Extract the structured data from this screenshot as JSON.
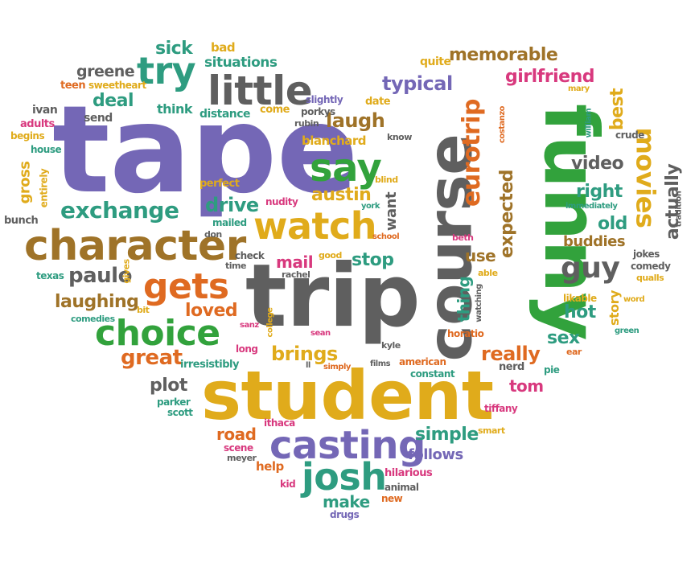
{
  "colors": {
    "purple": "#7467b6",
    "gray": "#5f5f5f",
    "gold": "#e0ab1b",
    "orange": "#df6a21",
    "green": "#32a23c",
    "teal": "#2e9c80",
    "pink": "#d8397e",
    "brown": "#9f7328"
  },
  "words": [
    {
      "text": "tape",
      "color": "purple"
    },
    {
      "text": "trip",
      "color": "gray"
    },
    {
      "text": "student",
      "color": "gold"
    },
    {
      "text": "course",
      "color": "gray"
    },
    {
      "text": "funny",
      "color": "green"
    },
    {
      "text": "character",
      "color": "brown"
    },
    {
      "text": "casting",
      "color": "purple"
    },
    {
      "text": "watch",
      "color": "gold"
    },
    {
      "text": "little",
      "color": "gray"
    },
    {
      "text": "choice",
      "color": "green"
    },
    {
      "text": "gets",
      "color": "orange"
    },
    {
      "text": "say",
      "color": "green"
    },
    {
      "text": "josh",
      "color": "teal"
    },
    {
      "text": "try",
      "color": "teal"
    },
    {
      "text": "exchange",
      "color": "teal"
    },
    {
      "text": "eurotrip",
      "color": "orange"
    },
    {
      "text": "movies",
      "color": "gold"
    },
    {
      "text": "memorable",
      "color": "brown"
    },
    {
      "text": "typical",
      "color": "purple"
    },
    {
      "text": "girlfriend",
      "color": "pink"
    },
    {
      "text": "laugh",
      "color": "brown"
    },
    {
      "text": "guy",
      "color": "gray"
    },
    {
      "text": "paulo",
      "color": "gray"
    },
    {
      "text": "great",
      "color": "orange"
    },
    {
      "text": "brings",
      "color": "gold"
    },
    {
      "text": "really",
      "color": "orange"
    },
    {
      "text": "drive",
      "color": "teal"
    },
    {
      "text": "austin",
      "color": "gold"
    },
    {
      "text": "deal",
      "color": "teal"
    },
    {
      "text": "laughing",
      "color": "brown"
    },
    {
      "text": "loved",
      "color": "orange"
    },
    {
      "text": "stop",
      "color": "teal"
    },
    {
      "text": "mail",
      "color": "pink"
    },
    {
      "text": "video",
      "color": "gray"
    },
    {
      "text": "right",
      "color": "teal"
    },
    {
      "text": "best",
      "color": "gold"
    },
    {
      "text": "actually",
      "color": "gray"
    },
    {
      "text": "expected",
      "color": "brown"
    },
    {
      "text": "old",
      "color": "teal"
    },
    {
      "text": "buddies",
      "color": "brown"
    },
    {
      "text": "sick",
      "color": "teal"
    },
    {
      "text": "situations",
      "color": "teal"
    },
    {
      "text": "greene",
      "color": "gray"
    },
    {
      "text": "bad",
      "color": "gold"
    },
    {
      "text": "quite",
      "color": "gold"
    },
    {
      "text": "plot",
      "color": "gray"
    },
    {
      "text": "road",
      "color": "orange"
    },
    {
      "text": "simple",
      "color": "teal"
    },
    {
      "text": "follows",
      "color": "purple"
    },
    {
      "text": "make",
      "color": "teal"
    },
    {
      "text": "tom",
      "color": "pink"
    },
    {
      "text": "sex",
      "color": "teal"
    },
    {
      "text": "hot",
      "color": "teal"
    },
    {
      "text": "thing",
      "color": "teal"
    },
    {
      "text": "use",
      "color": "brown"
    },
    {
      "text": "blanchard",
      "color": "gold"
    },
    {
      "text": "gross",
      "color": "gold"
    },
    {
      "text": "want",
      "color": "gray"
    },
    {
      "text": "story",
      "color": "gold"
    },
    {
      "text": "think",
      "color": "teal"
    },
    {
      "text": "distance",
      "color": "teal"
    },
    {
      "text": "perfect",
      "color": "gold"
    },
    {
      "text": "come",
      "color": "gold"
    },
    {
      "text": "date",
      "color": "gold"
    },
    {
      "text": "slightly",
      "color": "purple"
    },
    {
      "text": "porkys",
      "color": "gray"
    },
    {
      "text": "rubin",
      "color": "gray"
    },
    {
      "text": "know",
      "color": "gray"
    },
    {
      "text": "send",
      "color": "gray"
    },
    {
      "text": "ivan",
      "color": "gray"
    },
    {
      "text": "adults",
      "color": "pink"
    },
    {
      "text": "begins",
      "color": "gold"
    },
    {
      "text": "house",
      "color": "teal"
    },
    {
      "text": "entirely",
      "color": "gold"
    },
    {
      "text": "bunch",
      "color": "gray"
    },
    {
      "text": "teen",
      "color": "orange"
    },
    {
      "text": "sweetheart",
      "color": "gold"
    },
    {
      "text": "texas",
      "color": "teal"
    },
    {
      "text": "gives",
      "color": "gold"
    },
    {
      "text": "comedies",
      "color": "teal"
    },
    {
      "text": "bit",
      "color": "gold"
    },
    {
      "text": "irresistibly",
      "color": "teal"
    },
    {
      "text": "parker",
      "color": "teal"
    },
    {
      "text": "scott",
      "color": "teal"
    },
    {
      "text": "scene",
      "color": "pink"
    },
    {
      "text": "meyer",
      "color": "gray"
    },
    {
      "text": "help",
      "color": "orange"
    },
    {
      "text": "kid",
      "color": "pink"
    },
    {
      "text": "ithaca",
      "color": "pink"
    },
    {
      "text": "hilarious",
      "color": "pink"
    },
    {
      "text": "animal",
      "color": "gray"
    },
    {
      "text": "new",
      "color": "orange"
    },
    {
      "text": "drugs",
      "color": "purple"
    },
    {
      "text": "nerd",
      "color": "gray"
    },
    {
      "text": "pie",
      "color": "teal"
    },
    {
      "text": "tiffany",
      "color": "pink"
    },
    {
      "text": "smart",
      "color": "gold"
    },
    {
      "text": "ear",
      "color": "orange"
    },
    {
      "text": "green",
      "color": "teal"
    },
    {
      "text": "jokes",
      "color": "gray"
    },
    {
      "text": "comedy",
      "color": "gray"
    },
    {
      "text": "qualls",
      "color": "gold"
    },
    {
      "text": "likable",
      "color": "gold"
    },
    {
      "text": "word",
      "color": "gold"
    },
    {
      "text": "tradition",
      "color": "gray"
    },
    {
      "text": "immediately",
      "color": "teal"
    },
    {
      "text": "crude",
      "color": "gray"
    },
    {
      "text": "william",
      "color": "teal"
    },
    {
      "text": "mary",
      "color": "gold"
    },
    {
      "text": "costanzo",
      "color": "orange"
    },
    {
      "text": "blind",
      "color": "gold"
    },
    {
      "text": "york",
      "color": "teal"
    },
    {
      "text": "school",
      "color": "orange"
    },
    {
      "text": "beth",
      "color": "pink"
    },
    {
      "text": "able",
      "color": "gold"
    },
    {
      "text": "watching",
      "color": "gray"
    },
    {
      "text": "horatio",
      "color": "orange"
    },
    {
      "text": "kyle",
      "color": "gray"
    },
    {
      "text": "american",
      "color": "orange"
    },
    {
      "text": "constant",
      "color": "teal"
    },
    {
      "text": "films",
      "color": "gray"
    },
    {
      "text": "simply",
      "color": "orange"
    },
    {
      "text": "ll",
      "color": "gray"
    },
    {
      "text": "sean",
      "color": "pink"
    },
    {
      "text": "sanz",
      "color": "pink"
    },
    {
      "text": "college",
      "color": "gold"
    },
    {
      "text": "long",
      "color": "pink"
    },
    {
      "text": "good",
      "color": "gold"
    },
    {
      "text": "rachel",
      "color": "gray"
    },
    {
      "text": "check",
      "color": "gray"
    },
    {
      "text": "time",
      "color": "gray"
    },
    {
      "text": "mailed",
      "color": "teal"
    },
    {
      "text": "don",
      "color": "gray"
    },
    {
      "text": "nudity",
      "color": "pink"
    }
  ]
}
